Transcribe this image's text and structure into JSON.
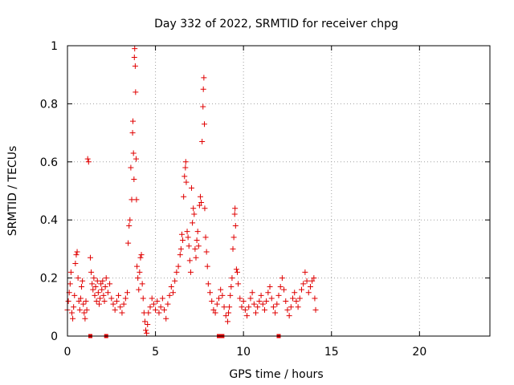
{
  "chart_data": {
    "type": "scatter",
    "title": "Day 332 of 2022, SRMTID for receiver chpg",
    "xlabel": "GPS time / hours",
    "ylabel": "SRMTID / TECUs",
    "xlim": [
      0,
      24
    ],
    "ylim": [
      0,
      1
    ],
    "xticks": [
      0,
      5,
      10,
      15,
      20
    ],
    "xtick_labels": [
      "0",
      "5",
      "10",
      "15",
      "20"
    ],
    "yticks": [
      0,
      0.2,
      0.4,
      0.6,
      0.8,
      1
    ],
    "ytick_labels": [
      "0",
      "0.2",
      "0.4",
      "0.6",
      "0.8",
      "1"
    ],
    "grid": true,
    "series": [
      {
        "marker": "plus",
        "color": "#e00000",
        "points": [
          [
            0.0,
            0.09
          ],
          [
            0.05,
            0.12
          ],
          [
            0.1,
            0.15
          ],
          [
            0.15,
            0.18
          ],
          [
            0.2,
            0.22
          ],
          [
            0.25,
            0.08
          ],
          [
            0.3,
            0.06
          ],
          [
            0.35,
            0.1
          ],
          [
            0.4,
            0.14
          ],
          [
            0.45,
            0.25
          ],
          [
            0.5,
            0.28
          ],
          [
            0.55,
            0.29
          ],
          [
            0.6,
            0.2
          ],
          [
            0.65,
            0.12
          ],
          [
            0.7,
            0.09
          ],
          [
            0.75,
            0.13
          ],
          [
            0.8,
            0.17
          ],
          [
            0.85,
            0.19
          ],
          [
            0.9,
            0.11
          ],
          [
            0.95,
            0.08
          ],
          [
            1.0,
            0.06
          ],
          [
            1.05,
            0.12
          ],
          [
            1.1,
            0.09
          ],
          [
            1.15,
            0.61
          ],
          [
            1.2,
            0.6
          ],
          [
            1.3,
            0.27
          ],
          [
            1.35,
            0.22
          ],
          [
            1.4,
            0.18
          ],
          [
            1.45,
            0.16
          ],
          [
            1.5,
            0.2
          ],
          [
            1.55,
            0.14
          ],
          [
            1.6,
            0.17
          ],
          [
            1.65,
            0.12
          ],
          [
            1.7,
            0.19
          ],
          [
            1.75,
            0.15
          ],
          [
            1.8,
            0.11
          ],
          [
            1.85,
            0.13
          ],
          [
            1.9,
            0.18
          ],
          [
            1.95,
            0.16
          ],
          [
            2.0,
            0.19
          ],
          [
            2.05,
            0.14
          ],
          [
            2.1,
            0.12
          ],
          [
            2.15,
            0.17
          ],
          [
            2.2,
            0.2
          ],
          [
            2.3,
            0.15
          ],
          [
            2.4,
            0.18
          ],
          [
            2.5,
            0.13
          ],
          [
            2.6,
            0.11
          ],
          [
            2.7,
            0.09
          ],
          [
            2.8,
            0.12
          ],
          [
            2.9,
            0.14
          ],
          [
            3.0,
            0.1
          ],
          [
            3.1,
            0.08
          ],
          [
            3.2,
            0.11
          ],
          [
            3.3,
            0.13
          ],
          [
            3.4,
            0.15
          ],
          [
            3.45,
            0.32
          ],
          [
            3.5,
            0.38
          ],
          [
            3.55,
            0.4
          ],
          [
            3.6,
            0.58
          ],
          [
            3.65,
            0.47
          ],
          [
            3.7,
            0.7
          ],
          [
            3.72,
            0.74
          ],
          [
            3.75,
            0.63
          ],
          [
            3.78,
            0.54
          ],
          [
            3.8,
            0.96
          ],
          [
            3.82,
            0.99
          ],
          [
            3.85,
            0.93
          ],
          [
            3.87,
            0.84
          ],
          [
            3.9,
            0.61
          ],
          [
            3.92,
            0.47
          ],
          [
            3.95,
            0.24
          ],
          [
            4.0,
            0.2
          ],
          [
            4.05,
            0.16
          ],
          [
            4.1,
            0.22
          ],
          [
            4.15,
            0.27
          ],
          [
            4.2,
            0.28
          ],
          [
            4.25,
            0.18
          ],
          [
            4.3,
            0.13
          ],
          [
            4.35,
            0.08
          ],
          [
            4.4,
            0.05
          ],
          [
            4.45,
            0.02
          ],
          [
            4.5,
            0.01
          ],
          [
            4.55,
            0.04
          ],
          [
            4.6,
            0.08
          ],
          [
            4.7,
            0.1
          ],
          [
            4.8,
            0.13
          ],
          [
            4.9,
            0.11
          ],
          [
            5.0,
            0.09
          ],
          [
            5.1,
            0.12
          ],
          [
            5.2,
            0.08
          ],
          [
            5.3,
            0.1
          ],
          [
            5.4,
            0.13
          ],
          [
            5.5,
            0.09
          ],
          [
            5.6,
            0.06
          ],
          [
            5.7,
            0.11
          ],
          [
            5.8,
            0.14
          ],
          [
            5.9,
            0.17
          ],
          [
            6.0,
            0.15
          ],
          [
            6.1,
            0.19
          ],
          [
            6.2,
            0.22
          ],
          [
            6.3,
            0.24
          ],
          [
            6.4,
            0.28
          ],
          [
            6.45,
            0.3
          ],
          [
            6.5,
            0.35
          ],
          [
            6.55,
            0.33
          ],
          [
            6.6,
            0.48
          ],
          [
            6.65,
            0.55
          ],
          [
            6.7,
            0.58
          ],
          [
            6.72,
            0.6
          ],
          [
            6.75,
            0.53
          ],
          [
            6.8,
            0.36
          ],
          [
            6.85,
            0.34
          ],
          [
            6.9,
            0.31
          ],
          [
            6.95,
            0.26
          ],
          [
            7.0,
            0.22
          ],
          [
            7.05,
            0.51
          ],
          [
            7.1,
            0.39
          ],
          [
            7.15,
            0.44
          ],
          [
            7.2,
            0.42
          ],
          [
            7.25,
            0.3
          ],
          [
            7.3,
            0.27
          ],
          [
            7.35,
            0.33
          ],
          [
            7.4,
            0.36
          ],
          [
            7.45,
            0.31
          ],
          [
            7.5,
            0.45
          ],
          [
            7.55,
            0.48
          ],
          [
            7.6,
            0.46
          ],
          [
            7.65,
            0.67
          ],
          [
            7.7,
            0.79
          ],
          [
            7.72,
            0.85
          ],
          [
            7.75,
            0.89
          ],
          [
            7.78,
            0.73
          ],
          [
            7.8,
            0.44
          ],
          [
            7.85,
            0.34
          ],
          [
            7.9,
            0.29
          ],
          [
            7.95,
            0.24
          ],
          [
            8.0,
            0.18
          ],
          [
            8.1,
            0.15
          ],
          [
            8.2,
            0.12
          ],
          [
            8.3,
            0.09
          ],
          [
            8.4,
            0.08
          ],
          [
            8.5,
            0.11
          ],
          [
            8.6,
            0.13
          ],
          [
            8.7,
            0.16
          ],
          [
            8.8,
            0.14
          ],
          [
            8.9,
            0.1
          ],
          [
            9.0,
            0.07
          ],
          [
            9.1,
            0.05
          ],
          [
            9.15,
            0.08
          ],
          [
            9.2,
            0.1
          ],
          [
            9.25,
            0.14
          ],
          [
            9.3,
            0.17
          ],
          [
            9.35,
            0.2
          ],
          [
            9.4,
            0.3
          ],
          [
            9.45,
            0.34
          ],
          [
            9.5,
            0.42
          ],
          [
            9.52,
            0.44
          ],
          [
            9.55,
            0.38
          ],
          [
            9.6,
            0.23
          ],
          [
            9.65,
            0.22
          ],
          [
            9.7,
            0.18
          ],
          [
            9.8,
            0.13
          ],
          [
            9.9,
            0.1
          ],
          [
            10.0,
            0.12
          ],
          [
            10.1,
            0.09
          ],
          [
            10.2,
            0.07
          ],
          [
            10.3,
            0.1
          ],
          [
            10.4,
            0.13
          ],
          [
            10.5,
            0.15
          ],
          [
            10.6,
            0.11
          ],
          [
            10.7,
            0.08
          ],
          [
            10.8,
            0.1
          ],
          [
            10.9,
            0.12
          ],
          [
            11.0,
            0.14
          ],
          [
            11.1,
            0.11
          ],
          [
            11.2,
            0.09
          ],
          [
            11.3,
            0.12
          ],
          [
            11.4,
            0.15
          ],
          [
            11.5,
            0.17
          ],
          [
            11.6,
            0.13
          ],
          [
            11.7,
            0.1
          ],
          [
            11.8,
            0.08
          ],
          [
            11.9,
            0.11
          ],
          [
            12.0,
            0.14
          ],
          [
            12.1,
            0.17
          ],
          [
            12.2,
            0.2
          ],
          [
            12.3,
            0.16
          ],
          [
            12.4,
            0.12
          ],
          [
            12.5,
            0.09
          ],
          [
            12.6,
            0.07
          ],
          [
            12.7,
            0.1
          ],
          [
            12.8,
            0.13
          ],
          [
            12.9,
            0.15
          ],
          [
            13.0,
            0.12
          ],
          [
            13.1,
            0.1
          ],
          [
            13.2,
            0.13
          ],
          [
            13.3,
            0.16
          ],
          [
            13.4,
            0.18
          ],
          [
            13.5,
            0.22
          ],
          [
            13.6,
            0.19
          ],
          [
            13.7,
            0.15
          ],
          [
            13.8,
            0.17
          ],
          [
            13.9,
            0.19
          ],
          [
            14.0,
            0.2
          ],
          [
            14.05,
            0.13
          ],
          [
            14.1,
            0.09
          ]
        ]
      }
    ],
    "zero_marks": [
      1.3,
      2.2,
      8.6,
      8.8,
      12.0
    ]
  }
}
